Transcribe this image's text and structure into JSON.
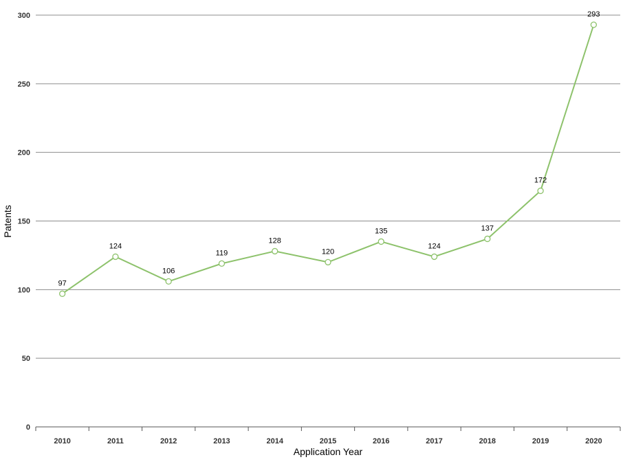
{
  "chart_data": {
    "type": "line",
    "xlabel": "Application Year",
    "ylabel": "Patents",
    "ylim": [
      0,
      300
    ],
    "yticks": [
      0,
      50,
      100,
      150,
      200,
      250,
      300
    ],
    "categories": [
      "2010",
      "2011",
      "2012",
      "2013",
      "2014",
      "2015",
      "2016",
      "2017",
      "2018",
      "2019",
      "2020"
    ],
    "series": [
      {
        "values": [
          97,
          124,
          106,
          119,
          128,
          120,
          135,
          124,
          137,
          172,
          293
        ],
        "color": "#8dc26b",
        "data_labels": true,
        "markers": "hollow-circle"
      }
    ],
    "grid": true,
    "legend": "none"
  }
}
